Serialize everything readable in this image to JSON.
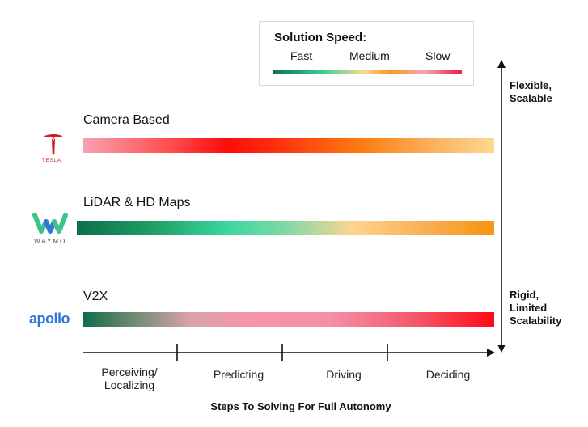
{
  "legend": {
    "title": "Solution Speed:",
    "fast": "Fast",
    "medium": "Medium",
    "slow": "Slow"
  },
  "rows": [
    {
      "label": "Camera Based",
      "company": "TESLA"
    },
    {
      "label": "LiDAR & HD Maps",
      "company": "WAYMO"
    },
    {
      "label": "V2X",
      "company": "apollo"
    }
  ],
  "steps": [
    "Perceiving/",
    "Localizing",
    "Predicting",
    "Driving",
    "Deciding"
  ],
  "x_title": "Steps To Solving For Full Autonomy",
  "y_axis": {
    "top": [
      "Flexible,",
      "Scalable"
    ],
    "bottom": [
      "Rigid,",
      "Limited",
      "Scalability"
    ]
  },
  "colors": {
    "fast": "#0f6e4a",
    "medium": "#f79a1c",
    "slow": "#e8203f",
    "tesla_red": "#d11a1a",
    "waymo_green": "#3cc48b",
    "waymo_blue": "#2e78d6",
    "apollo_blue": "#2e78d6"
  }
}
